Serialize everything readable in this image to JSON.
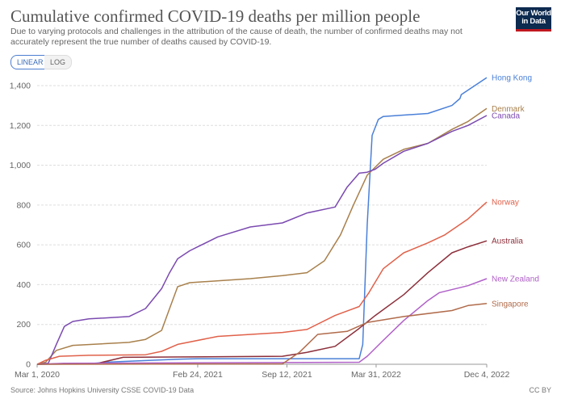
{
  "header": {
    "title": "Cumulative confirmed COVID-19 deaths per million people",
    "subtitle": "Due to varying protocols and challenges in the attribution of the cause of death, the number of confirmed deaths may not accurately represent the true number of deaths caused by COVID-19.",
    "logo": "Our World in Data"
  },
  "controls": {
    "linear": "LINEAR",
    "log": "LOG",
    "selected": "LINEAR"
  },
  "footer": {
    "source": "Source: Johns Hopkins University CSSE COVID-19 Data",
    "license": "CC BY"
  },
  "chart_data": {
    "type": "line",
    "title": "Cumulative confirmed COVID-19 deaths per million people",
    "xlabel": "",
    "ylabel": "",
    "xlim": [
      "2020-03-01",
      "2022-12-04"
    ],
    "ylim": [
      0,
      1400
    ],
    "grid": "horizontal dashed",
    "legend": "line-end labels (right)",
    "x_ticks": [
      {
        "date": "2020-03-01",
        "label": "Mar 1, 2020"
      },
      {
        "date": "2021-02-24",
        "label": "Feb 24, 2021"
      },
      {
        "date": "2021-09-12",
        "label": "Sep 12, 2021"
      },
      {
        "date": "2022-03-31",
        "label": "Mar 31, 2022"
      },
      {
        "date": "2022-12-04",
        "label": "Dec 4, 2022"
      }
    ],
    "y_ticks": [
      {
        "v": 0,
        "label": "0"
      },
      {
        "v": 200,
        "label": "200"
      },
      {
        "v": 400,
        "label": "400"
      },
      {
        "v": 600,
        "label": "600"
      },
      {
        "v": 800,
        "label": "800"
      },
      {
        "v": 1000,
        "label": "1,000"
      },
      {
        "v": 1200,
        "label": "1,200"
      },
      {
        "v": 1400,
        "label": "1,400"
      }
    ],
    "series": [
      {
        "name": "Hong Kong",
        "color": "#4a80d8",
        "points": [
          [
            "2020-03-01",
            0
          ],
          [
            "2020-06-25",
            2
          ],
          [
            "2020-07-31",
            10
          ],
          [
            "2020-09-23",
            15
          ],
          [
            "2021-01-10",
            25
          ],
          [
            "2021-02-24",
            28
          ],
          [
            "2022-02-21",
            28
          ],
          [
            "2022-03-01",
            100
          ],
          [
            "2022-03-11",
            700
          ],
          [
            "2022-03-22",
            1150
          ],
          [
            "2022-04-05",
            1230
          ],
          [
            "2022-04-16",
            1245
          ],
          [
            "2022-07-25",
            1260
          ],
          [
            "2022-09-17",
            1300
          ],
          [
            "2022-10-05",
            1335
          ],
          [
            "2022-10-08",
            1355
          ],
          [
            "2022-12-04",
            1440
          ]
        ]
      },
      {
        "name": "Denmark",
        "color": "#a8804c",
        "points": [
          [
            "2020-03-01",
            0
          ],
          [
            "2020-03-20",
            10
          ],
          [
            "2020-04-13",
            70
          ],
          [
            "2020-05-20",
            95
          ],
          [
            "2020-09-23",
            110
          ],
          [
            "2020-10-30",
            125
          ],
          [
            "2020-12-05",
            170
          ],
          [
            "2020-12-23",
            280
          ],
          [
            "2021-01-10",
            390
          ],
          [
            "2021-02-06",
            410
          ],
          [
            "2021-06-22",
            430
          ],
          [
            "2021-09-02",
            445
          ],
          [
            "2021-10-27",
            460
          ],
          [
            "2021-12-05",
            520
          ],
          [
            "2022-01-10",
            650
          ],
          [
            "2022-02-08",
            800
          ],
          [
            "2022-03-11",
            950
          ],
          [
            "2022-04-16",
            1030
          ],
          [
            "2022-06-01",
            1080
          ],
          [
            "2022-07-25",
            1110
          ],
          [
            "2022-09-17",
            1180
          ],
          [
            "2022-10-23",
            1220
          ],
          [
            "2022-12-04",
            1285
          ]
        ]
      },
      {
        "name": "Canada",
        "color": "#7b4ab0",
        "points": [
          [
            "2020-03-01",
            0
          ],
          [
            "2020-03-26",
            5
          ],
          [
            "2020-04-13",
            100
          ],
          [
            "2020-05-01",
            190
          ],
          [
            "2020-05-20",
            215
          ],
          [
            "2020-06-25",
            228
          ],
          [
            "2020-09-23",
            240
          ],
          [
            "2020-10-30",
            280
          ],
          [
            "2020-12-05",
            380
          ],
          [
            "2020-12-23",
            460
          ],
          [
            "2021-01-10",
            530
          ],
          [
            "2021-02-06",
            570
          ],
          [
            "2021-02-24",
            590
          ],
          [
            "2021-04-10",
            640
          ],
          [
            "2021-06-22",
            690
          ],
          [
            "2021-09-02",
            710
          ],
          [
            "2021-10-27",
            760
          ],
          [
            "2021-12-29",
            790
          ],
          [
            "2022-01-25",
            890
          ],
          [
            "2022-02-21",
            960
          ],
          [
            "2022-03-11",
            965
          ],
          [
            "2022-03-29",
            980
          ],
          [
            "2022-04-16",
            1010
          ],
          [
            "2022-06-01",
            1070
          ],
          [
            "2022-07-25",
            1110
          ],
          [
            "2022-09-17",
            1170
          ],
          [
            "2022-10-23",
            1200
          ],
          [
            "2022-12-04",
            1250
          ]
        ]
      },
      {
        "name": "Norway",
        "color": "#e0614a",
        "points": [
          [
            "2020-03-01",
            0
          ],
          [
            "2020-03-20",
            20
          ],
          [
            "2020-04-20",
            40
          ],
          [
            "2020-06-25",
            45
          ],
          [
            "2020-10-30",
            48
          ],
          [
            "2020-12-05",
            65
          ],
          [
            "2021-01-10",
            100
          ],
          [
            "2021-04-10",
            140
          ],
          [
            "2021-09-02",
            160
          ],
          [
            "2021-10-27",
            175
          ],
          [
            "2021-12-29",
            245
          ],
          [
            "2022-02-21",
            290
          ],
          [
            "2022-03-15",
            360
          ],
          [
            "2022-04-16",
            480
          ],
          [
            "2022-06-01",
            560
          ],
          [
            "2022-07-25",
            610
          ],
          [
            "2022-09-01",
            650
          ],
          [
            "2022-10-23",
            730
          ],
          [
            "2022-12-04",
            815
          ]
        ]
      },
      {
        "name": "Australia",
        "color": "#8c2f3a",
        "points": [
          [
            "2020-03-01",
            0
          ],
          [
            "2020-07-15",
            5
          ],
          [
            "2020-09-10",
            35
          ],
          [
            "2021-09-02",
            40
          ],
          [
            "2021-10-27",
            60
          ],
          [
            "2021-12-29",
            90
          ],
          [
            "2022-02-21",
            180
          ],
          [
            "2022-03-29",
            245
          ],
          [
            "2022-06-01",
            350
          ],
          [
            "2022-07-25",
            460
          ],
          [
            "2022-09-17",
            560
          ],
          [
            "2022-10-23",
            590
          ],
          [
            "2022-12-04",
            620
          ]
        ]
      },
      {
        "name": "New Zealand",
        "color": "#b060c8",
        "points": [
          [
            "2020-03-01",
            0
          ],
          [
            "2020-05-01",
            5
          ],
          [
            "2022-02-21",
            10
          ],
          [
            "2022-03-11",
            40
          ],
          [
            "2022-04-16",
            120
          ],
          [
            "2022-06-01",
            220
          ],
          [
            "2022-07-25",
            320
          ],
          [
            "2022-08-20",
            360
          ],
          [
            "2022-10-23",
            395
          ],
          [
            "2022-12-04",
            430
          ]
        ]
      },
      {
        "name": "Singapore",
        "color": "#b06b4b",
        "points": [
          [
            "2020-03-01",
            0
          ],
          [
            "2021-09-02",
            2
          ],
          [
            "2021-10-10",
            60
          ],
          [
            "2021-11-20",
            150
          ],
          [
            "2022-01-25",
            165
          ],
          [
            "2022-03-11",
            210
          ],
          [
            "2022-06-01",
            240
          ],
          [
            "2022-09-17",
            270
          ],
          [
            "2022-10-23",
            295
          ],
          [
            "2022-12-04",
            305
          ]
        ]
      }
    ]
  }
}
